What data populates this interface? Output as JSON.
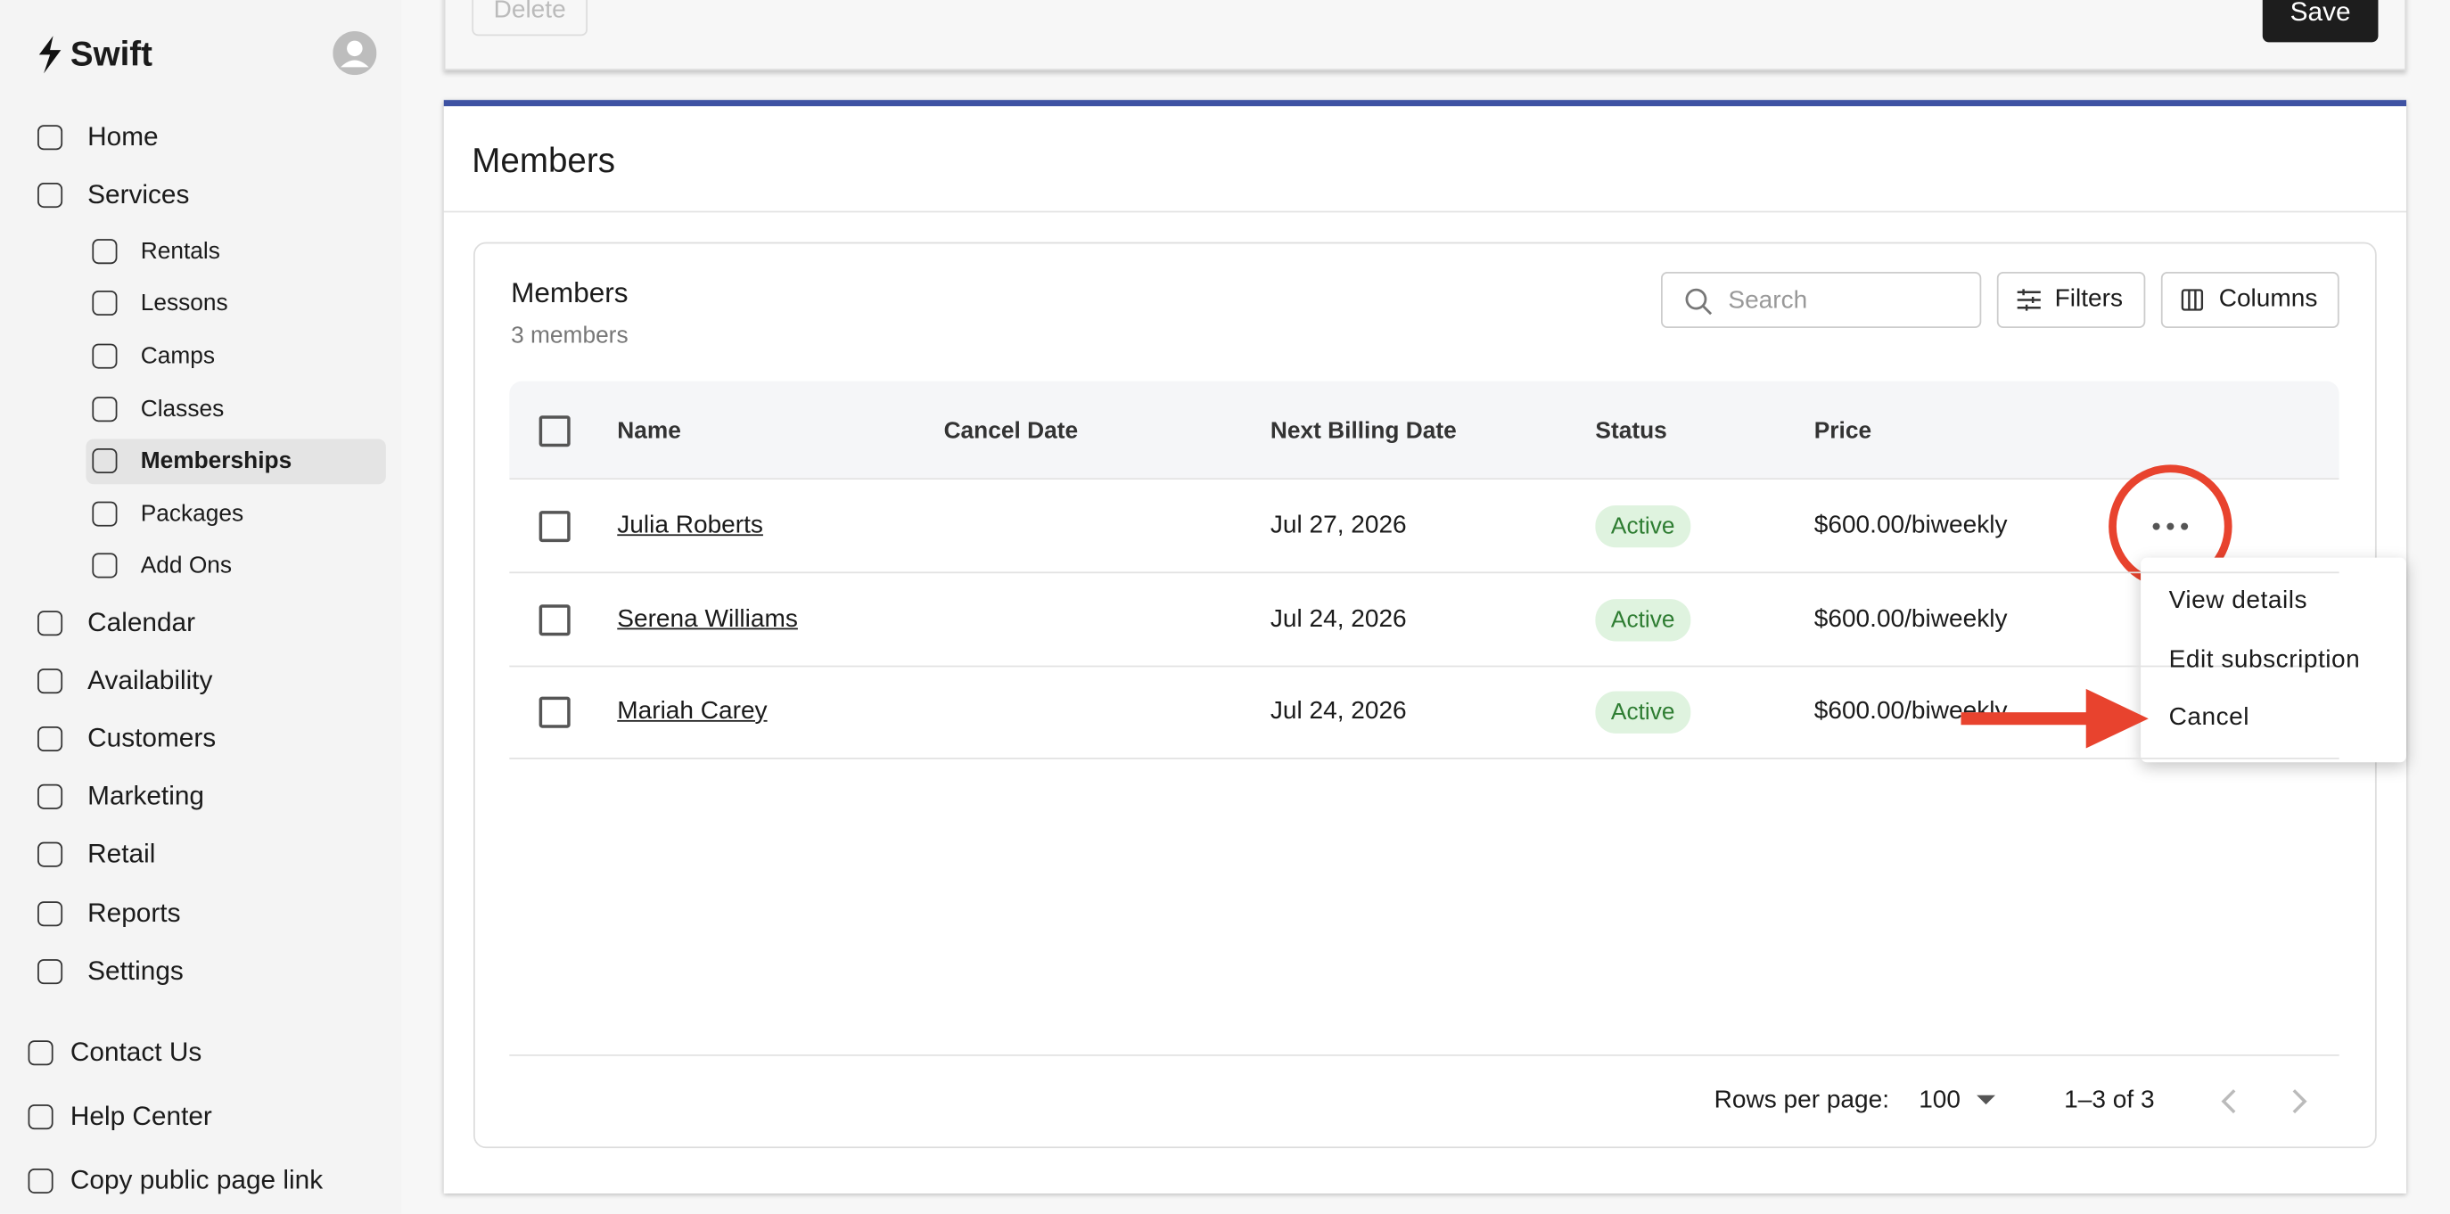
{
  "sidebar": {
    "brand": "Swift",
    "nav": [
      "Home",
      "Services"
    ],
    "services_sub": [
      "Rentals",
      "Lessons",
      "Camps",
      "Classes",
      "Memberships",
      "Packages",
      "Add Ons"
    ],
    "nav_more": [
      "Calendar",
      "Availability",
      "Customers",
      "Marketing",
      "Retail",
      "Reports",
      "Settings"
    ],
    "footer": [
      "Contact Us",
      "Help Center",
      "Copy public page link"
    ]
  },
  "top_card": {
    "delete": "Delete",
    "save": "Save"
  },
  "section": {
    "title": "Members"
  },
  "table": {
    "title": "Members",
    "subtitle": "3 members",
    "search_placeholder": "Search",
    "filters": "Filters",
    "columns_button": "Columns",
    "columns": [
      "Name",
      "Cancel Date",
      "Next Billing Date",
      "Status",
      "Price"
    ],
    "rows": [
      {
        "name": "Julia Roberts",
        "next_billing_date": "Jul 27, 2026",
        "status": "Active",
        "price": "$600.00/biweekly"
      },
      {
        "name": "Serena Williams",
        "next_billing_date": "Jul 24, 2026",
        "status": "Active",
        "price": "$600.00/biweekly"
      },
      {
        "name": "Mariah Carey",
        "next_billing_date": "Jul 24, 2026",
        "status": "Active",
        "price": "$600.00/biweekly"
      }
    ]
  },
  "menu": [
    "View details",
    "Edit subscription",
    "Cancel"
  ],
  "pagination": {
    "rows_per_page_label": "Rows per page:",
    "rows_per_page": "100",
    "range": "1–3 of 3"
  }
}
